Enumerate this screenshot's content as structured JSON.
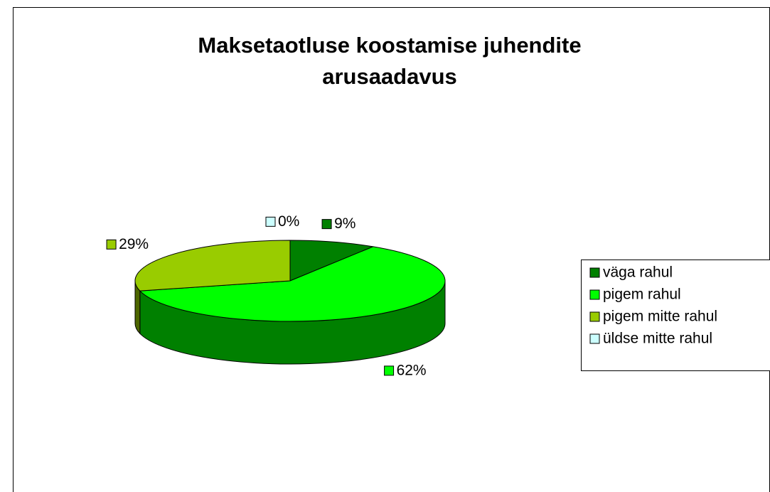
{
  "chart_data": {
    "type": "pie3d",
    "title": [
      "Maksetaotluse koostamise juhendite",
      "arusaadavus"
    ],
    "categories": [
      "väga rahul",
      "pigem rahul",
      "pigem mitte rahul",
      "üldse mitte rahul"
    ],
    "values": [
      9,
      62,
      29,
      0
    ],
    "value_labels": [
      "9%",
      "62%",
      "29%",
      "0%"
    ],
    "colors": [
      "#008000",
      "#00ff00",
      "#99cc00",
      "#ccffff"
    ],
    "legend": "right"
  }
}
